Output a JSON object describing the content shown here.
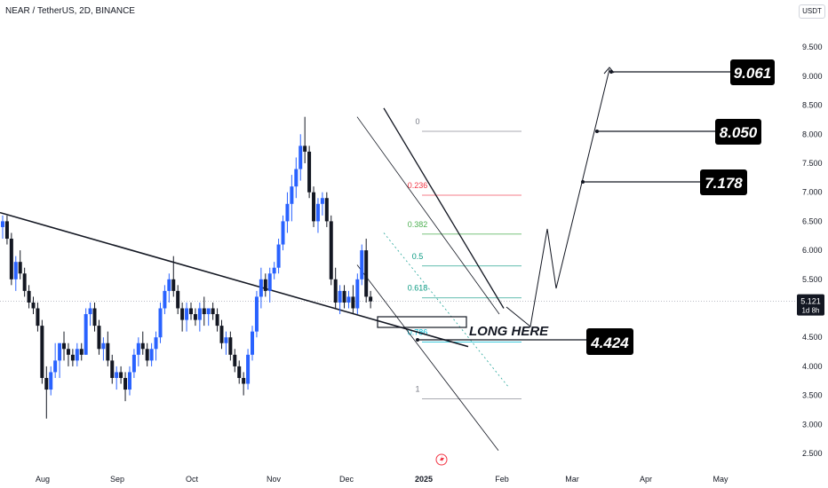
{
  "header": {
    "title": "NEAR / TetherUS, 2D, BINANCE",
    "currency": "USDT"
  },
  "price_tag": {
    "value": "5.121",
    "sub": "1d 8h"
  },
  "chart_data": {
    "type": "candlestick",
    "title": "NEAR / TetherUS, 2D, BINANCE",
    "y_axis": {
      "min": 2.5,
      "max": 9.5,
      "ticks": [
        "2.500",
        "3.000",
        "3.500",
        "4.000",
        "4.500",
        "5.000",
        "5.500",
        "6.000",
        "6.500",
        "7.000",
        "7.500",
        "8.000",
        "8.500",
        "9.000",
        "9.500"
      ]
    },
    "x_axis": {
      "labels": [
        "Aug",
        "Sep",
        "Oct",
        "Nov",
        "Dec",
        "2025",
        "Feb",
        "Mar",
        "Apr",
        "May"
      ]
    },
    "current_price": 5.121,
    "candles": [
      [
        6.4,
        6.6,
        6.2,
        6.5
      ],
      [
        6.5,
        6.6,
        6.1,
        6.2
      ],
      [
        6.2,
        6.3,
        5.4,
        5.5
      ],
      [
        5.5,
        5.9,
        5.3,
        5.8
      ],
      [
        5.8,
        6.0,
        5.5,
        5.6
      ],
      [
        5.6,
        5.7,
        5.2,
        5.3
      ],
      [
        5.3,
        5.4,
        5.0,
        5.1
      ],
      [
        5.1,
        5.2,
        4.9,
        5.0
      ],
      [
        5.0,
        5.1,
        4.6,
        4.7
      ],
      [
        4.7,
        4.8,
        3.7,
        3.8
      ],
      [
        3.8,
        4.0,
        3.1,
        3.6
      ],
      [
        3.6,
        4.0,
        3.5,
        3.9
      ],
      [
        3.9,
        4.4,
        3.8,
        4.1
      ],
      [
        4.1,
        4.4,
        3.8,
        4.4
      ],
      [
        4.4,
        4.6,
        4.1,
        4.3
      ],
      [
        4.3,
        4.4,
        4.0,
        4.2
      ],
      [
        4.2,
        4.3,
        4.0,
        4.1
      ],
      [
        4.1,
        4.4,
        4.0,
        4.3
      ],
      [
        4.3,
        4.4,
        4.1,
        4.2
      ],
      [
        4.2,
        5.0,
        4.2,
        4.9
      ],
      [
        4.9,
        5.1,
        4.7,
        5.0
      ],
      [
        5.0,
        5.1,
        4.6,
        4.7
      ],
      [
        4.7,
        4.8,
        4.2,
        4.3
      ],
      [
        4.3,
        4.5,
        4.1,
        4.4
      ],
      [
        4.4,
        4.6,
        4.0,
        4.1
      ],
      [
        4.1,
        4.2,
        3.7,
        3.8
      ],
      [
        3.8,
        4.0,
        3.6,
        3.9
      ],
      [
        3.9,
        4.0,
        3.7,
        3.8
      ],
      [
        3.8,
        3.9,
        3.4,
        3.6
      ],
      [
        3.6,
        4.0,
        3.5,
        3.9
      ],
      [
        3.9,
        4.3,
        3.8,
        4.2
      ],
      [
        4.2,
        4.5,
        4.0,
        4.4
      ],
      [
        4.4,
        4.6,
        4.2,
        4.3
      ],
      [
        4.3,
        4.4,
        4.0,
        4.1
      ],
      [
        4.1,
        4.4,
        4.0,
        4.3
      ],
      [
        4.3,
        4.6,
        4.1,
        4.5
      ],
      [
        4.5,
        5.1,
        4.4,
        5.0
      ],
      [
        5.0,
        5.4,
        4.9,
        5.3
      ],
      [
        5.3,
        5.6,
        5.1,
        5.5
      ],
      [
        5.5,
        5.9,
        5.2,
        5.3
      ],
      [
        5.3,
        5.4,
        4.9,
        5.0
      ],
      [
        5.0,
        5.1,
        4.6,
        4.8
      ],
      [
        4.8,
        5.1,
        4.6,
        5.0
      ],
      [
        5.0,
        5.1,
        4.8,
        4.9
      ],
      [
        4.9,
        5.0,
        4.7,
        4.8
      ],
      [
        4.8,
        5.1,
        4.6,
        5.0
      ],
      [
        5.0,
        5.2,
        4.7,
        4.9
      ],
      [
        4.9,
        5.0,
        4.7,
        5.0
      ],
      [
        5.0,
        5.1,
        4.8,
        4.9
      ],
      [
        4.9,
        5.0,
        4.6,
        4.7
      ],
      [
        4.7,
        4.8,
        4.3,
        4.4
      ],
      [
        4.4,
        4.6,
        4.2,
        4.5
      ],
      [
        4.5,
        4.6,
        4.1,
        4.2
      ],
      [
        4.2,
        4.3,
        3.9,
        4.0
      ],
      [
        4.0,
        4.1,
        3.7,
        3.8
      ],
      [
        3.8,
        3.9,
        3.5,
        3.7
      ],
      [
        3.7,
        4.3,
        3.6,
        4.2
      ],
      [
        4.2,
        4.7,
        4.1,
        4.6
      ],
      [
        4.6,
        5.3,
        4.5,
        5.2
      ],
      [
        5.2,
        5.7,
        5.0,
        5.5
      ],
      [
        5.5,
        5.6,
        5.2,
        5.3
      ],
      [
        5.3,
        5.7,
        5.1,
        5.6
      ],
      [
        5.6,
        5.8,
        5.5,
        5.7
      ],
      [
        5.7,
        6.2,
        5.6,
        6.1
      ],
      [
        6.1,
        6.6,
        6.0,
        6.5
      ],
      [
        6.5,
        7.0,
        6.3,
        6.8
      ],
      [
        6.8,
        7.3,
        6.5,
        7.1
      ],
      [
        7.1,
        7.6,
        6.9,
        7.4
      ],
      [
        7.4,
        8.0,
        7.2,
        7.8
      ],
      [
        7.8,
        8.3,
        7.5,
        7.7
      ],
      [
        7.7,
        7.8,
        6.9,
        7.0
      ],
      [
        7.0,
        7.1,
        6.4,
        6.5
      ],
      [
        6.5,
        6.9,
        6.3,
        6.8
      ],
      [
        6.8,
        7.0,
        6.6,
        6.9
      ],
      [
        6.9,
        7.0,
        6.4,
        6.5
      ],
      [
        6.5,
        6.6,
        5.4,
        5.5
      ],
      [
        5.5,
        5.7,
        5.0,
        5.1
      ],
      [
        5.1,
        5.4,
        4.9,
        5.3
      ],
      [
        5.3,
        5.4,
        5.0,
        5.1
      ],
      [
        5.1,
        5.3,
        5.0,
        5.2
      ],
      [
        5.2,
        5.4,
        4.9,
        5.0
      ],
      [
        5.0,
        5.6,
        4.9,
        5.5
      ],
      [
        5.5,
        6.1,
        5.4,
        6.0
      ],
      [
        6.0,
        6.2,
        5.1,
        5.2
      ],
      [
        5.2,
        5.3,
        5.0,
        5.12
      ]
    ],
    "fibonacci": [
      {
        "level": "0",
        "price": 8.05,
        "color": "#787b86"
      },
      {
        "level": "0.236",
        "price": 6.95,
        "color": "#f23645"
      },
      {
        "level": "0.382",
        "price": 6.28,
        "color": "#4caf50"
      },
      {
        "level": "0.5",
        "price": 5.73,
        "color": "#089981"
      },
      {
        "level": "0.618",
        "price": 5.18,
        "color": "#089981"
      },
      {
        "level": "0.786",
        "price": 4.42,
        "color": "#00bcd4"
      },
      {
        "level": "1",
        "price": 3.44,
        "color": "#787b86"
      }
    ],
    "targets": [
      {
        "label": "9.061",
        "price": 9.061
      },
      {
        "label": "8.050",
        "price": 8.05
      },
      {
        "label": "7.178",
        "price": 7.178
      }
    ],
    "entry": {
      "label": "4.424",
      "note": "LONG HERE"
    }
  },
  "colors": {
    "up": "#2962ff",
    "down": "#131722",
    "accent": "#131722"
  },
  "icons": {
    "bottom": "lightning-icon"
  }
}
